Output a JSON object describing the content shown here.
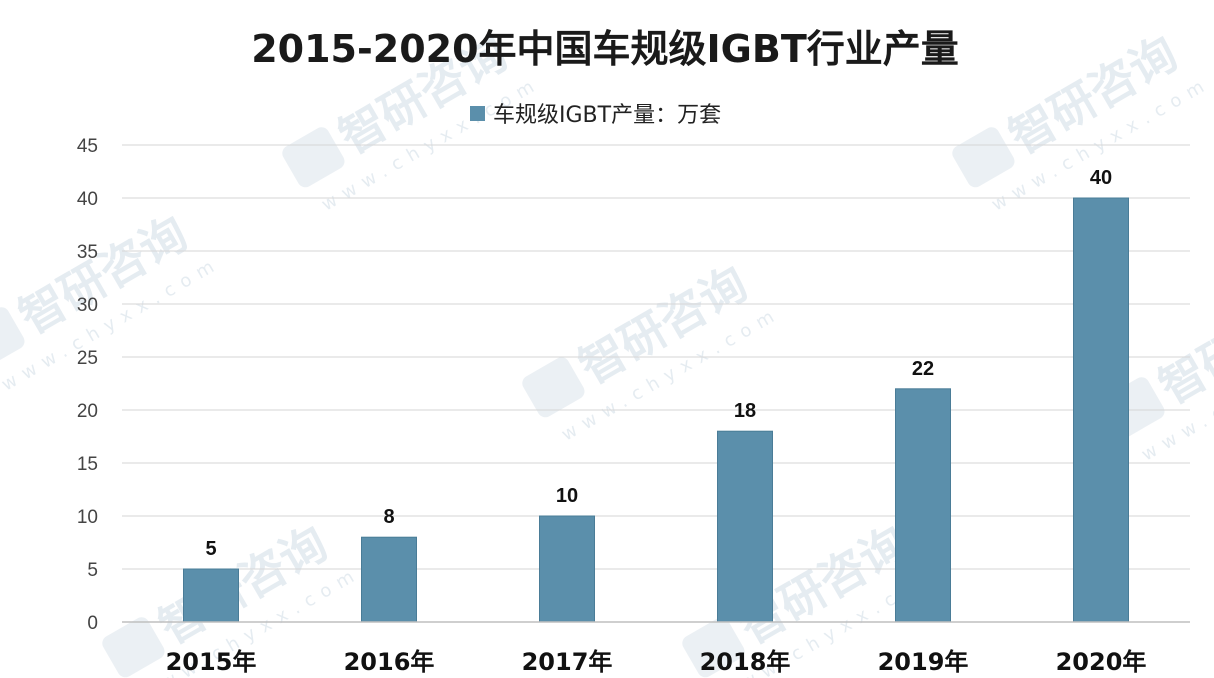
{
  "chart_data": {
    "type": "bar",
    "title": "2015-2020年中国车规级IGBT行业产量",
    "categories": [
      "2015年",
      "2016年",
      "2017年",
      "2018年",
      "2019年",
      "2020年"
    ],
    "series": [
      {
        "name": "车规级IGBT产量：万套",
        "values": [
          5,
          8,
          10,
          18,
          22,
          40
        ]
      }
    ],
    "ylim": [
      0,
      45
    ],
    "yticks": [
      0,
      5,
      10,
      15,
      20,
      25,
      30,
      35,
      40,
      45
    ],
    "xlabel": "",
    "ylabel": "",
    "grid": true,
    "legend_position": "top-center",
    "data_labels": true,
    "colors": {
      "bar": "#5b8fab",
      "bar_edge": "#4a7c97"
    }
  },
  "watermark": {
    "brand": "智研咨询",
    "url": "www.chyxx.com"
  }
}
